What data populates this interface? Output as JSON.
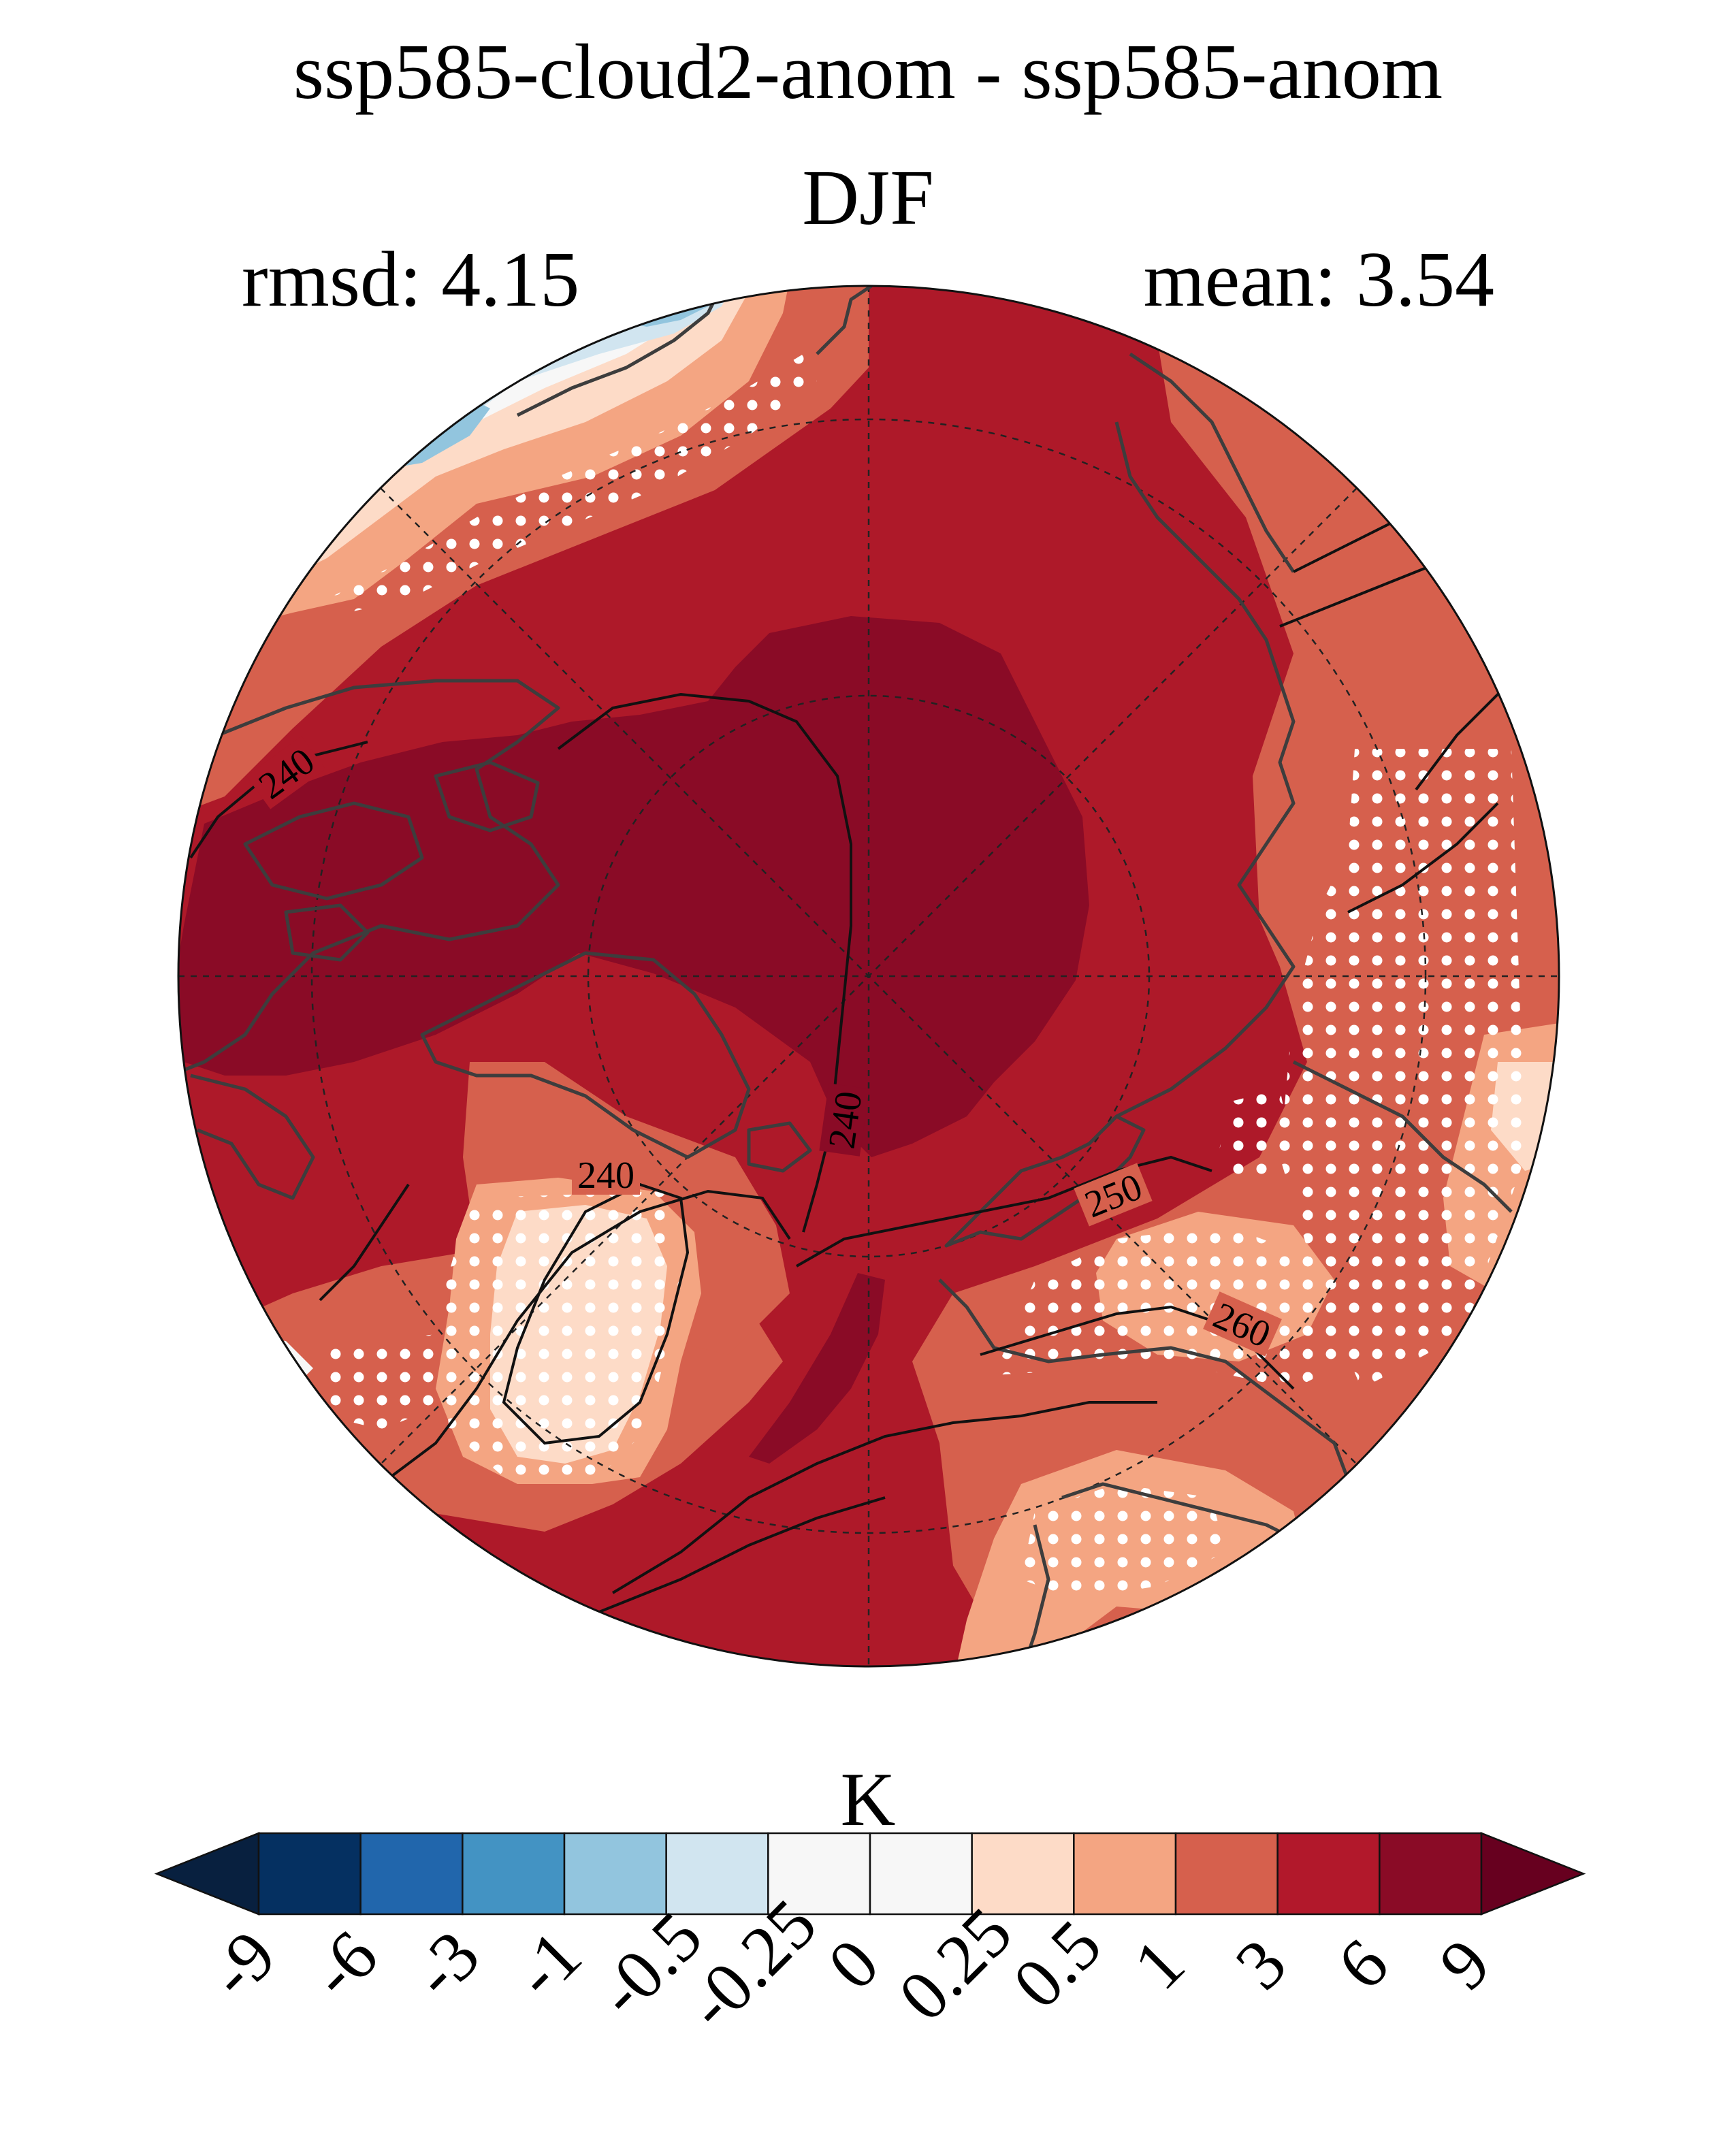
{
  "header": {
    "title": "ssp585-cloud2-anom - ssp585-anom",
    "season": "DJF",
    "rmsd": "rmsd: 4.15",
    "mean": "mean: 3.54"
  },
  "map": {
    "projection": "north-polar-stereographic",
    "stippling": "dots mark regions",
    "contour_labels": [
      "240",
      "240",
      "240",
      "240",
      "250",
      "260"
    ],
    "colors": {
      "darkest_red": "#8a0b26",
      "dark_red": "#ae1929",
      "red_orange": "#d6604d",
      "salmon": "#f4a582",
      "light_salmon": "#fddbc7",
      "white": "#f7f7f7",
      "light_blue": "#d1e5f0",
      "mid_blue": "#92c5de",
      "coast": "#3d3d3d",
      "contour": "#111111"
    }
  },
  "colorbar": {
    "unit": "K",
    "ticks": [
      "-9",
      "-6",
      "-3",
      "-1",
      "-0.5",
      "-0.25",
      "0",
      "0.25",
      "0.5",
      "1",
      "3",
      "6",
      "9"
    ],
    "colors": [
      "#053061",
      "#2166ac",
      "#4393c3",
      "#92c5de",
      "#d1e5f0",
      "#f7f7f7",
      "#f7f7f7",
      "#fddbc7",
      "#f4a582",
      "#d6604d",
      "#b2182b",
      "#8a0b26"
    ],
    "extend_low": "#08203f",
    "extend_high": "#67001f"
  }
}
